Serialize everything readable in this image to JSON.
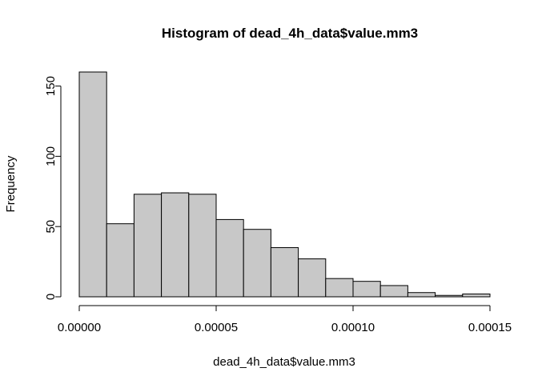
{
  "chart_data": {
    "type": "bar",
    "title": "Histogram of dead_4h_data$value.mm3",
    "xlabel": "dead_4h_data$value.mm3",
    "ylabel": "Frequency",
    "bin_edges": [
      0,
      1e-05,
      2e-05,
      3e-05,
      4e-05,
      5e-05,
      6e-05,
      7e-05,
      8e-05,
      9e-05,
      0.0001,
      0.00011,
      0.00012,
      0.00013,
      0.00014,
      0.00015
    ],
    "values": [
      160,
      52,
      73,
      74,
      73,
      55,
      48,
      35,
      27,
      13,
      11,
      8,
      3,
      1,
      2
    ],
    "xlim": [
      0,
      0.00015
    ],
    "ylim": [
      0,
      160
    ],
    "x_ticks": [
      0,
      5e-05,
      0.0001,
      0.00015
    ],
    "x_tick_labels": [
      "0.00000",
      "0.00005",
      "0.00010",
      "0.00015"
    ],
    "y_ticks": [
      0,
      50,
      100,
      150
    ],
    "y_tick_labels": [
      "0",
      "50",
      "100",
      "150"
    ],
    "bar_fill": "#c8c8c8",
    "grid": false
  }
}
